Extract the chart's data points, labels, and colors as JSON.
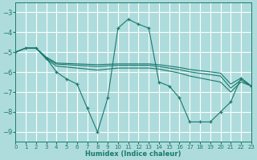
{
  "xlabel": "Humidex (Indice chaleur)",
  "xlim": [
    0,
    23
  ],
  "ylim": [
    -9.5,
    -2.5
  ],
  "yticks": [
    -9,
    -8,
    -7,
    -6,
    -5,
    -4,
    -3
  ],
  "xticks": [
    0,
    1,
    2,
    3,
    4,
    5,
    6,
    7,
    8,
    9,
    10,
    11,
    12,
    13,
    14,
    15,
    16,
    17,
    18,
    19,
    20,
    21,
    22,
    23
  ],
  "bg_color": "#aedcdc",
  "grid_color": "#c8ecec",
  "line_color": "#1a7a6e",
  "lines": [
    {
      "y": [
        -5.0,
        -4.8,
        -4.8,
        -5.3,
        -6.0,
        -6.35,
        -6.6,
        -7.8,
        -9.0,
        -7.3,
        -3.8,
        -3.35,
        -3.6,
        -3.8,
        -6.5,
        -6.7,
        -7.3,
        -8.5,
        -8.5,
        -8.5,
        -8.0,
        -7.5,
        -6.3,
        -6.7
      ],
      "marker": true
    },
    {
      "y": [
        -5.0,
        -4.8,
        -4.8,
        -5.35,
        -5.7,
        -5.75,
        -5.8,
        -5.85,
        -5.9,
        -5.85,
        -5.8,
        -5.8,
        -5.8,
        -5.8,
        -5.85,
        -5.95,
        -6.05,
        -6.2,
        -6.3,
        -6.4,
        -6.5,
        -7.0,
        -6.5,
        -6.7
      ],
      "marker": false
    },
    {
      "y": [
        -5.0,
        -4.8,
        -4.8,
        -5.3,
        -5.6,
        -5.63,
        -5.66,
        -5.69,
        -5.72,
        -5.69,
        -5.66,
        -5.66,
        -5.66,
        -5.66,
        -5.72,
        -5.8,
        -5.88,
        -5.99,
        -6.06,
        -6.13,
        -6.2,
        -6.8,
        -6.4,
        -6.7
      ],
      "marker": false
    },
    {
      "y": [
        -5.0,
        -4.8,
        -4.8,
        -5.25,
        -5.55,
        -5.57,
        -5.59,
        -5.61,
        -5.63,
        -5.61,
        -5.59,
        -5.59,
        -5.59,
        -5.59,
        -5.63,
        -5.7,
        -5.77,
        -5.87,
        -5.93,
        -5.99,
        -6.05,
        -6.6,
        -6.3,
        -6.7
      ],
      "marker": false
    }
  ]
}
